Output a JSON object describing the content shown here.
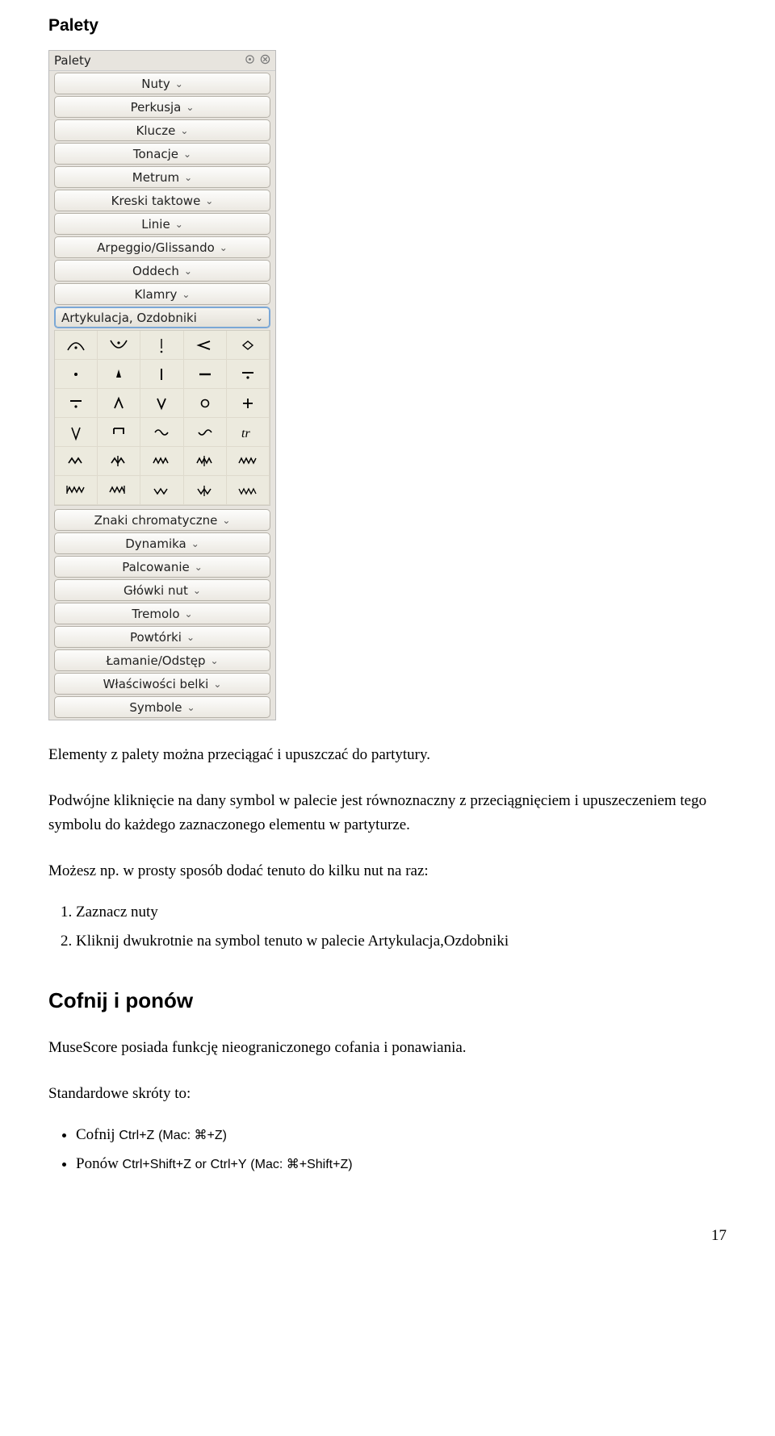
{
  "headings": {
    "h1": "Palety",
    "h2": "Cofnij i ponów"
  },
  "palette_panel": {
    "title": "Palety",
    "bg": "#e7e4de",
    "row_bg_top": "#fdfdfc",
    "row_bg_bot": "#ebe8e1",
    "row_border": "#b5b1a8",
    "font_family": "DejaVu Sans",
    "before_rows": [
      "Nuty",
      "Perkusja",
      "Klucze",
      "Tonacje",
      "Metrum",
      "Kreski taktowe",
      "Linie",
      "Arpeggio/Glissando",
      "Oddech",
      "Klamry"
    ],
    "expanded_row": "Artykulacja, Ozdobniki",
    "after_rows": [
      "Znaki chromatyczne",
      "Dynamika",
      "Palcowanie",
      "Główki nut",
      "Tremolo",
      "Powtórki",
      "Łamanie/Odstęp",
      "Właściwości belki",
      "Symbole"
    ],
    "grid_cols": 5,
    "grid_rows": 6
  },
  "paragraphs": {
    "intro": "Elementy z palety można przeciągać i upuszczać do partytury.",
    "dblclick": "Podwójne kliknięcie na dany symbol w palecie jest równoznaczny z przeciągnięciem i upuszeczeniem tego symbolu do każdego zaznaczonego elementu w partyturze.",
    "example_lead": "Możesz np. w prosty sposób dodać tenuto do kilku nut na raz:",
    "undo_lead": "MuseScore posiada funkcję nieograniczonego cofania i ponawiania.",
    "shortcuts_lead": "Standardowe skróty to:"
  },
  "steps": [
    "Zaznacz nuty",
    "Kliknij dwukrotnie na symbol tenuto w palecie Artykulacja,Ozdobniki"
  ],
  "shortcuts": {
    "undo_label": "Cofnij",
    "undo_keys": "Ctrl+Z",
    "undo_mac": "(Mac: ⌘+Z)",
    "redo_label": "Ponów",
    "redo_keys": "Ctrl+Shift+Z",
    "redo_or": "or",
    "redo_keys2": "Ctrl+Y",
    "redo_mac": "(Mac: ⌘+Shift+Z)"
  },
  "page_number": "17"
}
